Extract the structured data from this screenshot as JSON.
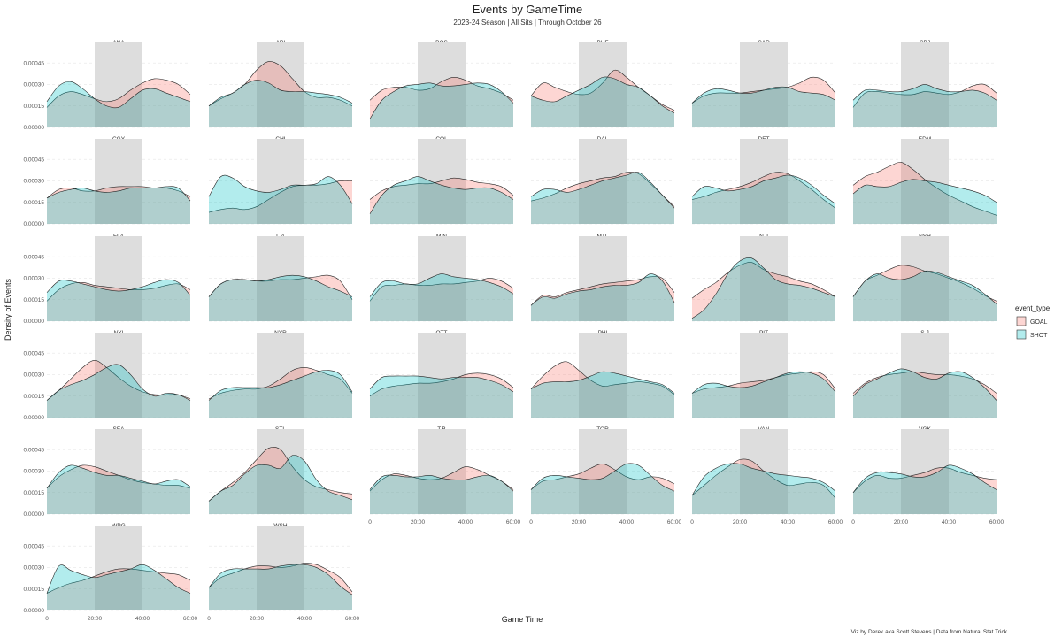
{
  "chart_data": {
    "type": "area",
    "title": "Events by GameTime",
    "subtitle": "2023-24 Season | All Sits | Through October 26",
    "xlabel": "Game Time",
    "ylabel": "Density of Events",
    "caption": "Viz by Derek aka Scott Stevens | Data from Natural Stat Trick",
    "xlim": [
      0,
      60
    ],
    "ylim": [
      0,
      0.00055
    ],
    "x_ticks": [
      0,
      20,
      40,
      60
    ],
    "x_tick_labels": [
      "0",
      "20:00",
      "40:00",
      "60:00"
    ],
    "y_ticks": [
      0,
      0.00015,
      0.0003,
      0.00045
    ],
    "y_tick_labels": [
      "0.00000",
      "0.00015",
      "0.00030",
      "0.00045"
    ],
    "shaded_band": [
      20,
      40
    ],
    "legend": {
      "title": "event_type",
      "position": "right",
      "entries": [
        {
          "name": "GOAL",
          "color": "#F8766D"
        },
        {
          "name": "SHOT",
          "color": "#00BFC4"
        }
      ]
    },
    "x": [
      0,
      5,
      10,
      15,
      20,
      25,
      30,
      35,
      40,
      45,
      50,
      55,
      60
    ],
    "facets": [
      {
        "team": "ANA",
        "GOAL": [
          14,
          22,
          25,
          23,
          20,
          18,
          20,
          26,
          31,
          34,
          33,
          30,
          23
        ],
        "SHOT": [
          18,
          29,
          32,
          27,
          20,
          15,
          14,
          20,
          26,
          27,
          24,
          21,
          18
        ]
      },
      {
        "team": "ARI",
        "GOAL": [
          15,
          20,
          24,
          30,
          40,
          46,
          43,
          34,
          25,
          21,
          21,
          19,
          15
        ],
        "SHOT": [
          15,
          21,
          24,
          30,
          33,
          31,
          26,
          25,
          25,
          24,
          23,
          21,
          17
        ]
      },
      {
        "team": "BOS",
        "GOAL": [
          19,
          26,
          28,
          28,
          26,
          27,
          32,
          35,
          33,
          29,
          27,
          24,
          19
        ],
        "SHOT": [
          6,
          19,
          25,
          29,
          30,
          31,
          29,
          29,
          30,
          31,
          30,
          25,
          17
        ]
      },
      {
        "team": "BUF",
        "GOAL": [
          22,
          31,
          28,
          25,
          23,
          24,
          31,
          40,
          35,
          28,
          22,
          16,
          12
        ],
        "SHOT": [
          22,
          19,
          18,
          22,
          26,
          30,
          35,
          34,
          30,
          28,
          22,
          15,
          10
        ]
      },
      {
        "team": "CAR",
        "GOAL": [
          17,
          22,
          24,
          24,
          24,
          25,
          26,
          27,
          28,
          31,
          35,
          33,
          24
        ],
        "SHOT": [
          17,
          24,
          27,
          26,
          24,
          24,
          26,
          28,
          28,
          25,
          24,
          23,
          19
        ]
      },
      {
        "team": "CBJ",
        "GOAL": [
          14,
          24,
          25,
          24,
          23,
          23,
          25,
          24,
          23,
          25,
          29,
          30,
          24
        ],
        "SHOT": [
          19,
          26,
          26,
          25,
          25,
          27,
          30,
          27,
          25,
          25,
          26,
          24,
          19
        ]
      },
      {
        "team": "CGY",
        "GOAL": [
          18,
          24,
          25,
          23,
          23,
          25,
          26,
          26,
          26,
          25,
          25,
          23,
          19
        ],
        "SHOT": [
          18,
          22,
          24,
          25,
          23,
          22,
          23,
          25,
          25,
          25,
          26,
          25,
          16
        ]
      },
      {
        "team": "CHI",
        "GOAL": [
          8,
          10,
          11,
          10,
          12,
          17,
          22,
          26,
          27,
          27,
          28,
          30,
          30
        ],
        "SHOT": [
          19,
          33,
          32,
          26,
          23,
          22,
          24,
          27,
          27,
          28,
          33,
          27,
          14
        ]
      },
      {
        "team": "COL",
        "GOAL": [
          17,
          23,
          26,
          27,
          28,
          28,
          30,
          32,
          31,
          29,
          28,
          26,
          20
        ],
        "SHOT": [
          7,
          20,
          27,
          30,
          33,
          30,
          27,
          25,
          24,
          25,
          25,
          22,
          17
        ]
      },
      {
        "team": "DAL",
        "GOAL": [
          16,
          18,
          21,
          25,
          28,
          30,
          32,
          33,
          36,
          35,
          28,
          20,
          12
        ],
        "SHOT": [
          19,
          24,
          24,
          22,
          24,
          27,
          30,
          32,
          34,
          36,
          29,
          20,
          11
        ]
      },
      {
        "team": "DET",
        "GOAL": [
          17,
          19,
          22,
          24,
          26,
          29,
          33,
          36,
          35,
          30,
          24,
          17,
          11
        ],
        "SHOT": [
          19,
          26,
          25,
          23,
          24,
          26,
          30,
          32,
          34,
          32,
          27,
          20,
          14
        ]
      },
      {
        "team": "EDM",
        "GOAL": [
          27,
          33,
          36,
          40,
          43,
          38,
          31,
          25,
          20,
          16,
          12,
          9,
          6
        ],
        "SHOT": [
          21,
          27,
          26,
          26,
          29,
          31,
          30,
          29,
          27,
          25,
          23,
          20,
          15
        ]
      },
      {
        "team": "FLA",
        "GOAL": [
          14,
          22,
          26,
          27,
          25,
          24,
          23,
          22,
          22,
          23,
          25,
          26,
          22
        ],
        "SHOT": [
          20,
          28,
          28,
          26,
          24,
          22,
          21,
          22,
          24,
          27,
          29,
          27,
          18
        ]
      },
      {
        "team": "L.A",
        "GOAL": [
          17,
          26,
          29,
          29,
          28,
          28,
          29,
          29,
          30,
          31,
          32,
          28,
          15
        ],
        "SHOT": [
          17,
          26,
          29,
          29,
          28,
          29,
          31,
          32,
          31,
          28,
          24,
          21,
          17
        ]
      },
      {
        "team": "MIN",
        "GOAL": [
          14,
          24,
          25,
          26,
          25,
          25,
          26,
          26,
          27,
          28,
          30,
          28,
          23
        ],
        "SHOT": [
          17,
          27,
          28,
          26,
          26,
          30,
          33,
          31,
          30,
          29,
          27,
          24,
          19
        ]
      },
      {
        "team": "MTL",
        "GOAL": [
          11,
          18,
          17,
          20,
          22,
          24,
          26,
          27,
          28,
          29,
          31,
          30,
          20
        ],
        "SHOT": [
          11,
          17,
          16,
          19,
          21,
          22,
          24,
          25,
          25,
          27,
          33,
          28,
          13
        ]
      },
      {
        "team": "N.J",
        "GOAL": [
          16,
          22,
          27,
          34,
          39,
          41,
          36,
          33,
          31,
          28,
          26,
          22,
          17
        ],
        "SHOT": [
          2,
          8,
          19,
          33,
          42,
          44,
          37,
          29,
          26,
          25,
          23,
          20,
          17
        ]
      },
      {
        "team": "NSH",
        "GOAL": [
          17,
          28,
          32,
          36,
          39,
          38,
          35,
          33,
          30,
          27,
          23,
          18,
          14
        ],
        "SHOT": [
          17,
          28,
          33,
          30,
          29,
          31,
          35,
          34,
          31,
          28,
          25,
          19,
          12
        ]
      },
      {
        "team": "NYI",
        "GOAL": [
          12,
          19,
          27,
          35,
          40,
          35,
          28,
          22,
          18,
          16,
          16,
          16,
          13
        ],
        "SHOT": [
          12,
          19,
          23,
          26,
          30,
          35,
          37,
          30,
          20,
          15,
          17,
          16,
          12
        ]
      },
      {
        "team": "NYR",
        "GOAL": [
          13,
          17,
          19,
          20,
          20,
          22,
          27,
          33,
          35,
          33,
          30,
          27,
          17
        ],
        "SHOT": [
          12,
          19,
          21,
          21,
          21,
          21,
          23,
          26,
          29,
          32,
          33,
          30,
          18
        ]
      },
      {
        "team": "OTT",
        "GOAL": [
          15,
          20,
          22,
          23,
          24,
          24,
          25,
          27,
          30,
          31,
          30,
          27,
          21
        ],
        "SHOT": [
          20,
          28,
          29,
          29,
          29,
          28,
          27,
          28,
          28,
          28,
          26,
          23,
          18
        ]
      },
      {
        "team": "PHI",
        "GOAL": [
          20,
          29,
          36,
          39,
          33,
          26,
          22,
          23,
          24,
          25,
          24,
          22,
          16
        ],
        "SHOT": [
          20,
          24,
          25,
          25,
          26,
          29,
          32,
          31,
          29,
          27,
          25,
          23,
          17
        ]
      },
      {
        "team": "PIT",
        "GOAL": [
          17,
          20,
          21,
          22,
          24,
          25,
          26,
          28,
          30,
          31,
          32,
          30,
          20
        ],
        "SHOT": [
          17,
          23,
          24,
          22,
          21,
          22,
          25,
          28,
          31,
          32,
          31,
          27,
          18
        ]
      },
      {
        "team": "S.J",
        "GOAL": [
          17,
          24,
          28,
          30,
          31,
          32,
          31,
          30,
          30,
          29,
          27,
          23,
          17
        ],
        "SHOT": [
          15,
          23,
          27,
          31,
          34,
          32,
          28,
          27,
          31,
          32,
          28,
          21,
          12
        ]
      },
      {
        "team": "SEA",
        "GOAL": [
          18,
          26,
          31,
          34,
          33,
          30,
          27,
          24,
          22,
          21,
          20,
          20,
          18
        ],
        "SHOT": [
          18,
          29,
          34,
          32,
          29,
          27,
          27,
          25,
          23,
          21,
          23,
          24,
          19
        ]
      },
      {
        "team": "STL",
        "GOAL": [
          9,
          16,
          22,
          29,
          38,
          46,
          45,
          33,
          24,
          19,
          17,
          15,
          14
        ],
        "SHOT": [
          9,
          16,
          20,
          28,
          34,
          34,
          32,
          41,
          37,
          24,
          16,
          13,
          10
        ]
      },
      {
        "team": "T.B",
        "GOAL": [
          16,
          24,
          28,
          27,
          25,
          24,
          25,
          29,
          33,
          31,
          27,
          23,
          17
        ],
        "SHOT": [
          17,
          26,
          27,
          26,
          26,
          27,
          25,
          24,
          24,
          26,
          27,
          23,
          16
        ]
      },
      {
        "team": "TOR",
        "GOAL": [
          17,
          23,
          24,
          26,
          28,
          32,
          35,
          31,
          26,
          24,
          26,
          25,
          21
        ],
        "SHOT": [
          17,
          25,
          27,
          26,
          25,
          24,
          25,
          30,
          35,
          34,
          27,
          20,
          16
        ]
      },
      {
        "team": "VAN",
        "GOAL": [
          13,
          20,
          27,
          33,
          38,
          37,
          30,
          24,
          20,
          21,
          22,
          20,
          11
        ],
        "SHOT": [
          13,
          26,
          32,
          35,
          35,
          32,
          30,
          28,
          27,
          26,
          25,
          22,
          16
        ]
      },
      {
        "team": "VGK",
        "GOAL": [
          15,
          23,
          27,
          25,
          25,
          27,
          29,
          32,
          32,
          29,
          27,
          25,
          24
        ],
        "SHOT": [
          15,
          25,
          29,
          29,
          28,
          26,
          26,
          29,
          34,
          32,
          28,
          22,
          17
        ]
      },
      {
        "team": "WPG",
        "GOAL": [
          12,
          16,
          19,
          21,
          24,
          27,
          29,
          29,
          28,
          27,
          26,
          25,
          21
        ],
        "SHOT": [
          12,
          31,
          28,
          25,
          23,
          25,
          27,
          29,
          32,
          28,
          22,
          16,
          12
        ]
      },
      {
        "team": "WSH",
        "GOAL": [
          16,
          23,
          26,
          29,
          31,
          31,
          30,
          31,
          33,
          32,
          28,
          23,
          13
        ],
        "SHOT": [
          16,
          26,
          29,
          29,
          29,
          29,
          31,
          32,
          32,
          30,
          25,
          17,
          11
        ]
      }
    ],
    "value_scale": 1e-05
  }
}
